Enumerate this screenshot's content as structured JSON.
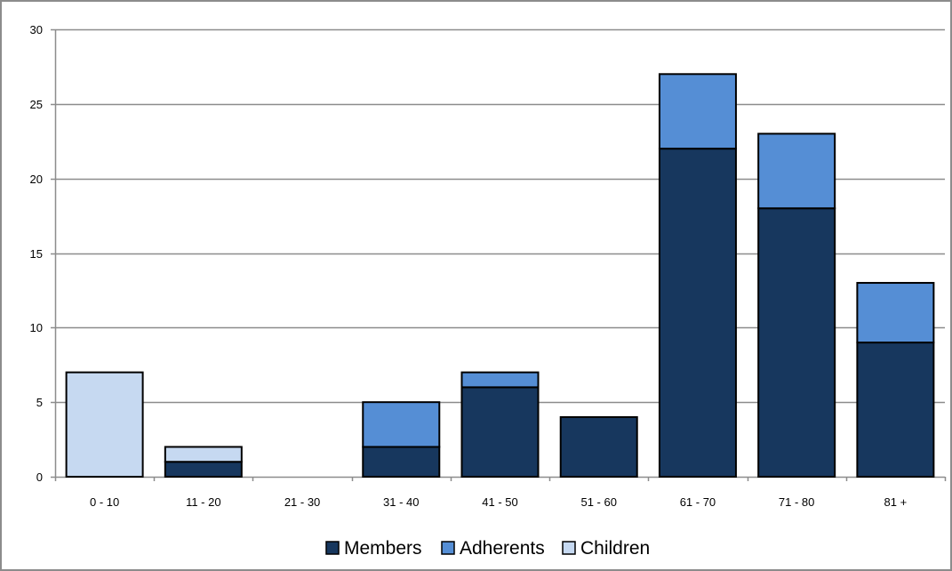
{
  "chart_data": {
    "type": "bar",
    "stacked": true,
    "categories": [
      "0 - 10",
      "11 - 20",
      "21 - 30",
      "31 - 40",
      "41 - 50",
      "51 - 60",
      "61 - 70",
      "71 - 80",
      "81 +"
    ],
    "series": [
      {
        "name": "Members",
        "color": "#17375e",
        "values": [
          0,
          1,
          0,
          2,
          6,
          4,
          22,
          18,
          9
        ]
      },
      {
        "name": "Adherents",
        "color": "#558ed5",
        "values": [
          0,
          0,
          0,
          3,
          1,
          0,
          5,
          5,
          4
        ]
      },
      {
        "name": "Children",
        "color": "#c6d9f1",
        "values": [
          7,
          1,
          0,
          0,
          0,
          0,
          0,
          0,
          0
        ]
      }
    ],
    "ylim": [
      0,
      30
    ],
    "yticks": [
      0,
      5,
      10,
      15,
      20,
      25,
      30
    ],
    "ytick_labels": [
      "0",
      "5",
      "10",
      "15",
      "20",
      "25",
      "30"
    ],
    "grid": true,
    "legend_position": "bottom"
  }
}
